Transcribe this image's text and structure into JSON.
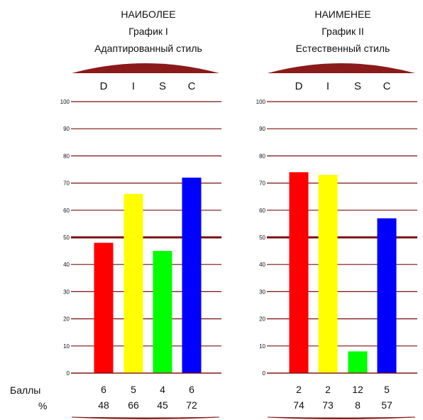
{
  "row_labels": {
    "scores": "Баллы",
    "percent": "%"
  },
  "colors": {
    "D": "#ff0000",
    "I": "#ffff00",
    "S": "#00ff00",
    "C": "#0000ff",
    "gridline": "#7a1010",
    "cap": "#8b1a1a"
  },
  "chart_data": [
    {
      "type": "bar",
      "title": "НАИБОЛЕЕ",
      "subtitle": "График I",
      "subtitle2": "Адаптированный стиль",
      "categories": [
        "D",
        "I",
        "S",
        "C"
      ],
      "values": [
        48,
        66,
        45,
        72
      ],
      "scores": [
        "6",
        "5",
        "4",
        "6"
      ],
      "percent": [
        "48",
        "66",
        "45",
        "72"
      ],
      "ylim": [
        0,
        100
      ],
      "yticks": [
        "0",
        "10",
        "20",
        "30",
        "40",
        "50",
        "60",
        "70",
        "80",
        "90",
        "100"
      ],
      "grid": true,
      "emphasis_line": 50
    },
    {
      "type": "bar",
      "title": "НАИМЕНЕЕ",
      "subtitle": "График II",
      "subtitle2": "Естественный стиль",
      "categories": [
        "D",
        "I",
        "S",
        "C"
      ],
      "values": [
        74,
        73,
        8,
        57
      ],
      "scores": [
        "2",
        "2",
        "12",
        "5"
      ],
      "percent": [
        "74",
        "73",
        "8",
        "57"
      ],
      "ylim": [
        0,
        100
      ],
      "yticks": [
        "0",
        "10",
        "20",
        "30",
        "40",
        "50",
        "60",
        "70",
        "80",
        "90",
        "100"
      ],
      "grid": true,
      "emphasis_line": 50
    }
  ]
}
